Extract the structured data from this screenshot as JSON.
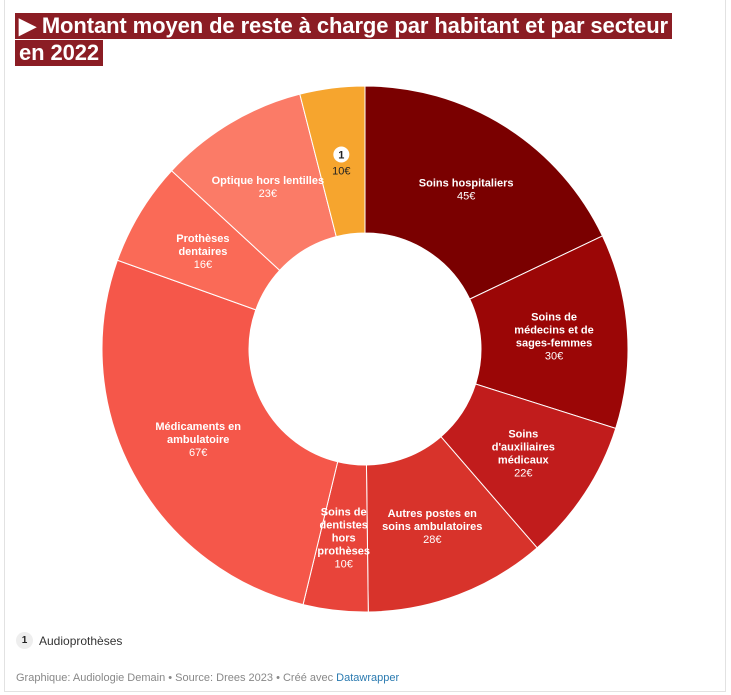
{
  "title": "▶ Montant moyen de reste à charge par habitant et par secteur en 2022",
  "chart_data": {
    "type": "pie",
    "variant": "donut",
    "unit": "€",
    "slices": [
      {
        "lines": [
          "Soins hospitaliers"
        ],
        "value": 45,
        "label": "45€",
        "color": "#7a0000"
      },
      {
        "lines": [
          "Soins de",
          "médecins et de",
          "sages-femmes"
        ],
        "value": 30,
        "label": "30€",
        "color": "#9b0606"
      },
      {
        "lines": [
          "Soins",
          "d'auxiliaires",
          "médicaux"
        ],
        "value": 22,
        "label": "22€",
        "color": "#c11c1c"
      },
      {
        "lines": [
          "Autres postes en",
          "soins ambulatoires"
        ],
        "value": 28,
        "label": "28€",
        "color": "#d8332b"
      },
      {
        "lines": [
          "Soins de",
          "dentistes",
          "hors",
          "prothèses"
        ],
        "value": 10,
        "label": "10€",
        "color": "#e8443a"
      },
      {
        "lines": [
          "Médicaments en",
          "ambulatoire"
        ],
        "value": 67,
        "label": "67€",
        "color": "#f5574a"
      },
      {
        "lines": [
          "Prothèses",
          "dentaires"
        ],
        "value": 16,
        "label": "16€",
        "color": "#fa6a57"
      },
      {
        "lines": [
          "Optique hors lentilles"
        ],
        "value": 23,
        "label": "23€",
        "color": "#fb7b67"
      },
      {
        "lines": [],
        "value": 10,
        "label": "10€",
        "color": "#f6a52e",
        "note": "1"
      }
    ]
  },
  "legend": {
    "badge": "1",
    "text": "Audioprothèses"
  },
  "footer": {
    "text": "Graphique: Audiologie Demain • Source: Drees 2023 • Créé avec ",
    "link": "Datawrapper"
  }
}
